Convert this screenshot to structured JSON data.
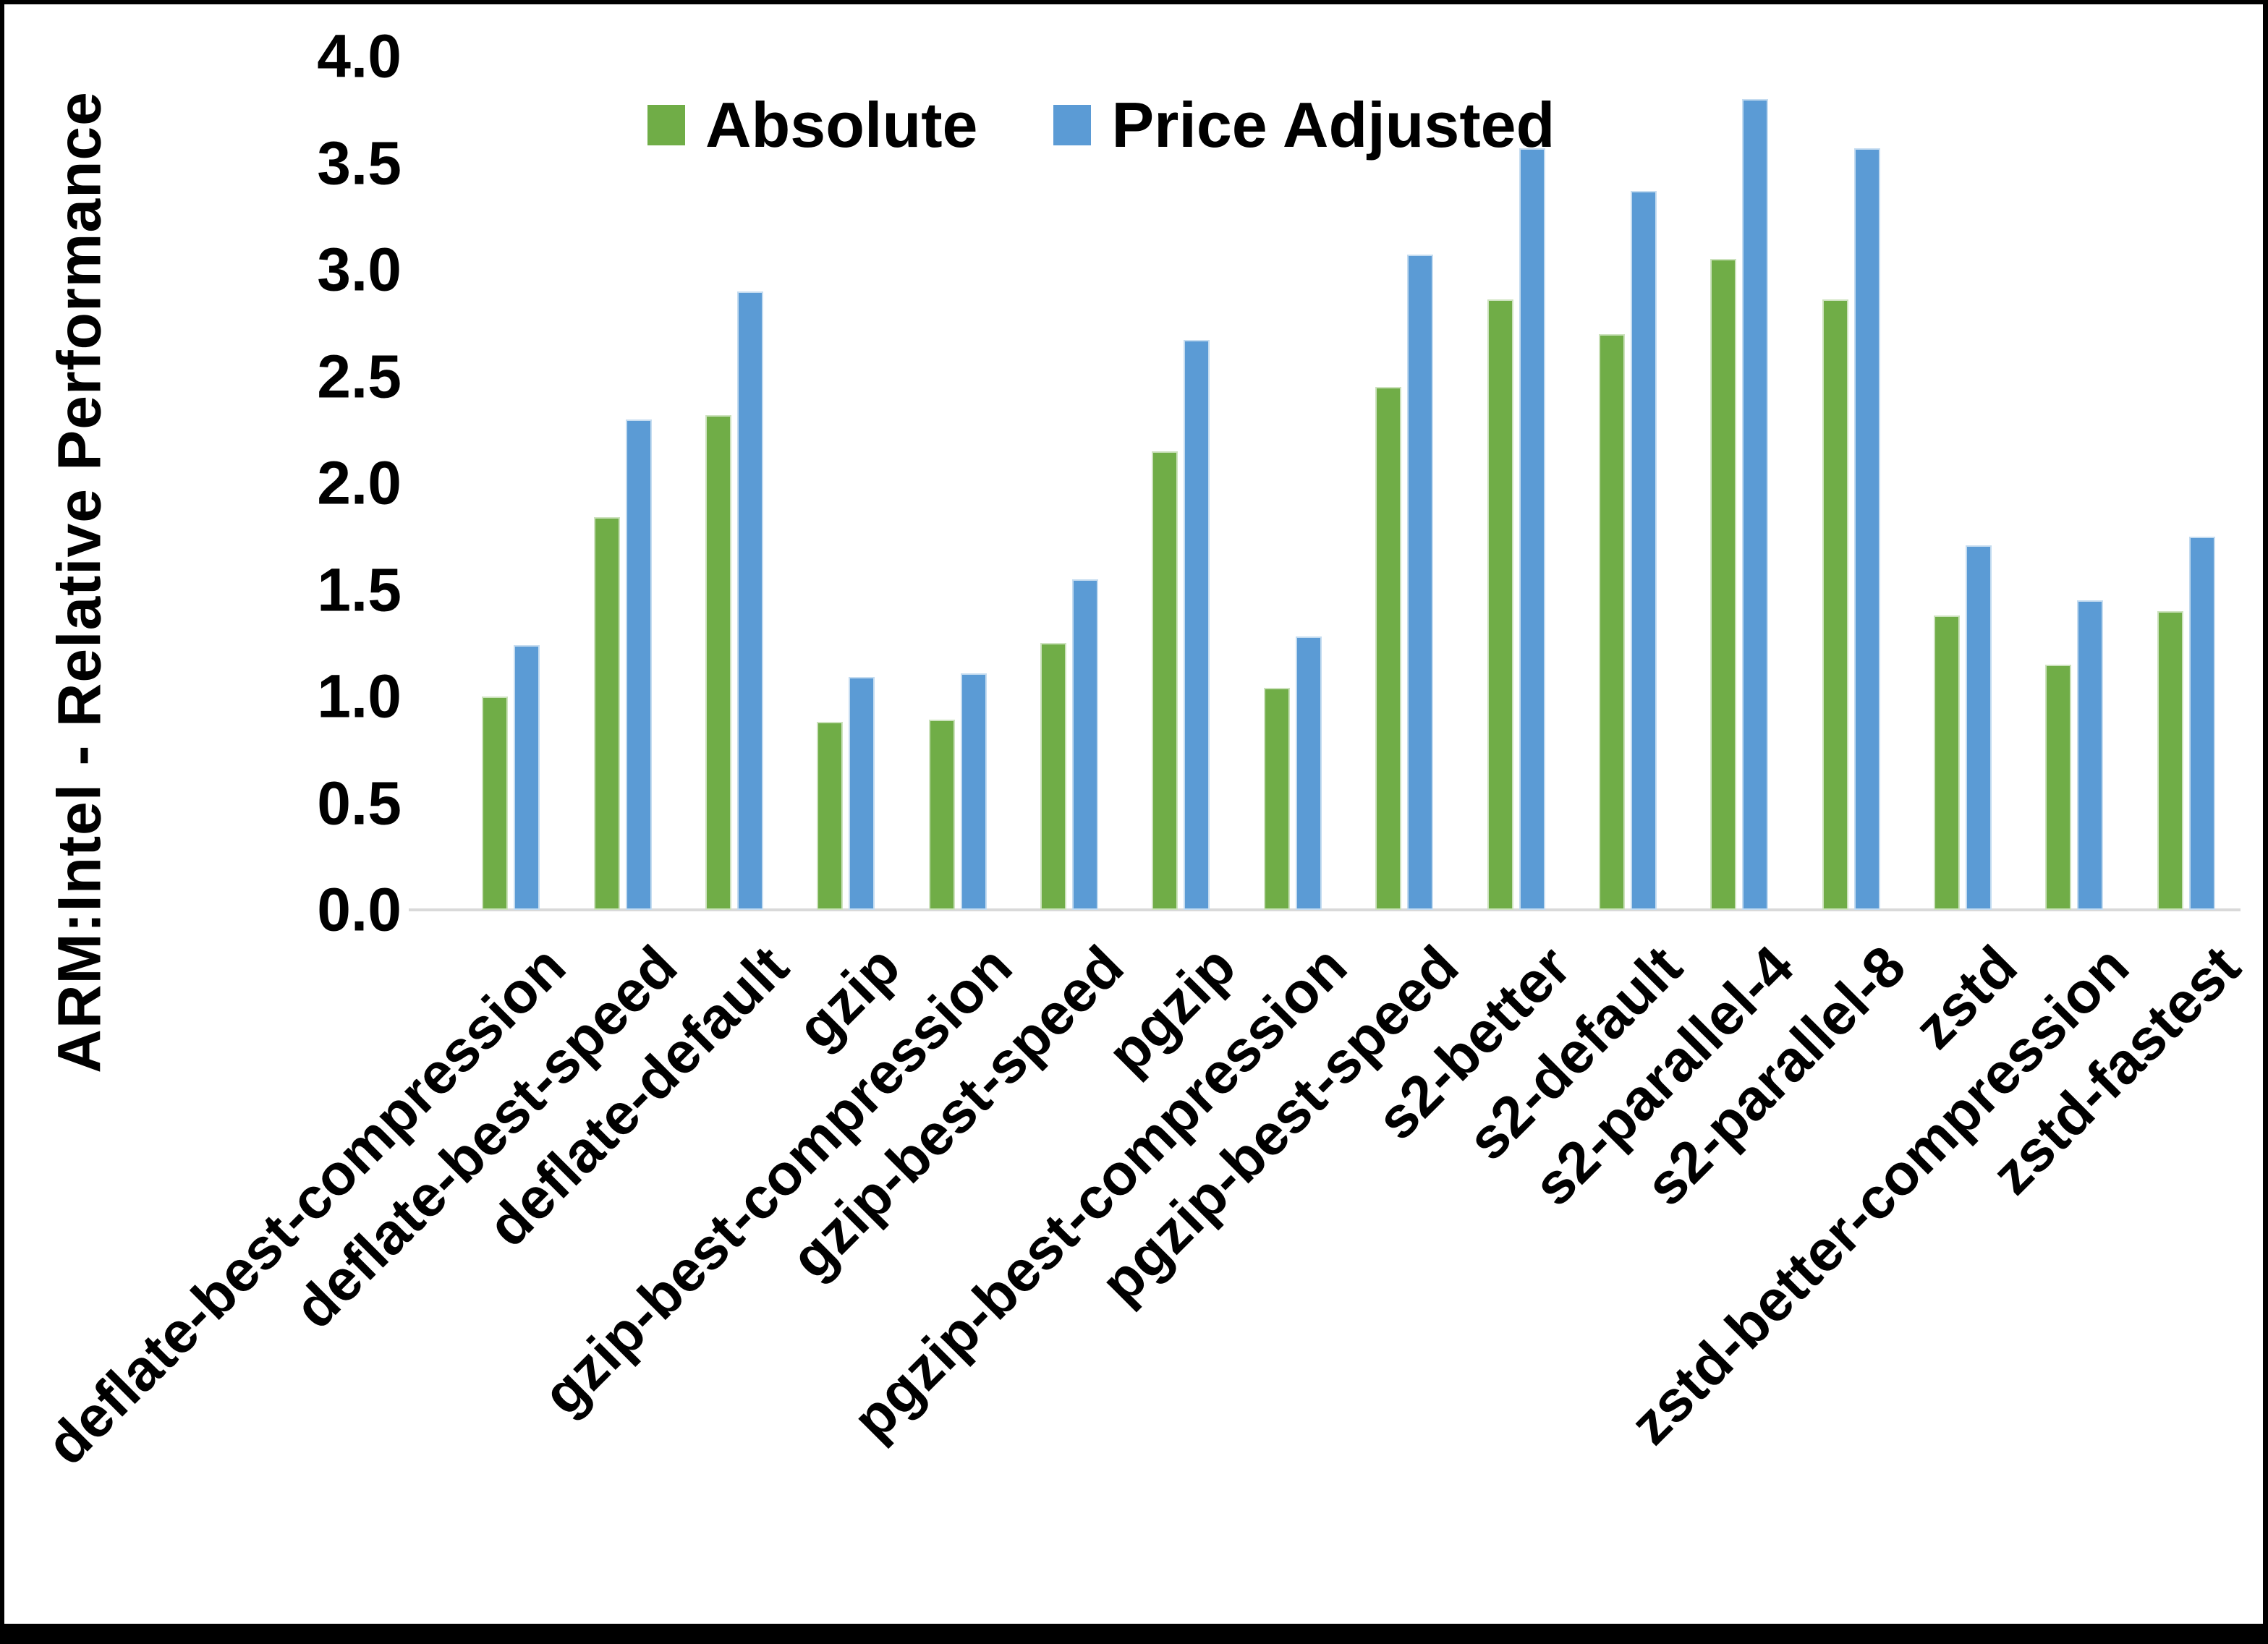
{
  "chart_data": {
    "type": "bar",
    "title": "",
    "xlabel": "",
    "ylabel": "ARM:Intel - Relative Performance",
    "ylim": [
      0.0,
      4.0
    ],
    "ytick_step": 0.5,
    "ytick_labels": [
      "0.0",
      "0.5",
      "1.0",
      "1.5",
      "2.0",
      "2.5",
      "3.0",
      "3.5",
      "4.0"
    ],
    "grid": false,
    "legend_position": "top-center",
    "categories": [
      "deflate-best-compression",
      "deflate-best-speed",
      "deflate-default",
      "gzip",
      "gzip-best-compression",
      "gzip-best-speed",
      "pgzip",
      "pgzip-best-compression",
      "pgzip-best-speed",
      "s2-better",
      "s2-default",
      "s2-parallel-4",
      "s2-parallel-8",
      "zstd",
      "zstd-better-compression",
      "zstd-fastest"
    ],
    "series": [
      {
        "name": "Absolute",
        "color": "#70AD47",
        "values": [
          1.0,
          1.84,
          2.32,
          0.88,
          0.89,
          1.25,
          2.15,
          1.04,
          2.45,
          2.86,
          2.7,
          3.05,
          2.86,
          1.38,
          1.15,
          1.4
        ]
      },
      {
        "name": "Price Adjusted",
        "color": "#5B9BD5",
        "values": [
          1.24,
          2.3,
          2.9,
          1.09,
          1.11,
          1.55,
          2.67,
          1.28,
          3.07,
          3.57,
          3.37,
          3.8,
          3.57,
          1.71,
          1.45,
          1.75
        ]
      }
    ],
    "axis_line_color": "#D9D9D9",
    "text_color": "#000000"
  }
}
